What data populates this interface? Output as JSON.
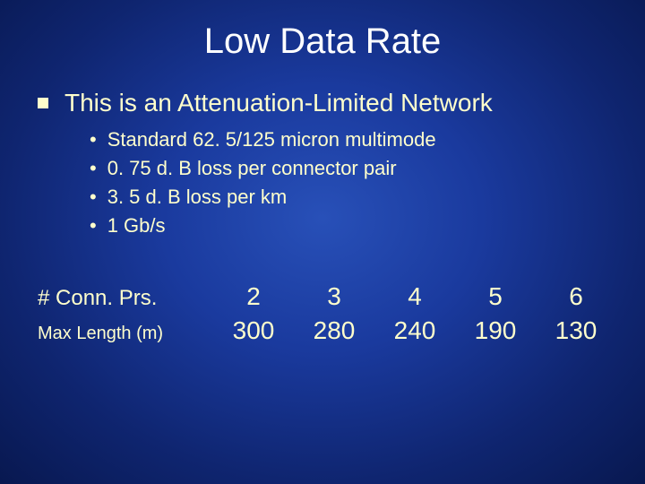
{
  "background": {
    "gradient_center": "#2850b8",
    "gradient_mid": "#1a3a9e",
    "gradient_outer": "#0f2570",
    "gradient_edge": "#081850"
  },
  "text_color": "#ffffcc",
  "title": {
    "text": "Low Data Rate",
    "color": "#ffffff",
    "fontsize": 40
  },
  "main_bullet": {
    "text": "This is an Attenuation-Limited Network",
    "fontsize": 28,
    "bullet_shape": "square"
  },
  "sub_bullets": {
    "fontsize": 22,
    "bullet_shape": "disc",
    "items": [
      "Standard 62. 5/125 micron multimode",
      "0. 75 d. B loss per connector pair",
      "3. 5 d. B loss per km",
      "1 Gb/s"
    ]
  },
  "table": {
    "rows": [
      {
        "label": "# Conn. Prs.",
        "label_fontsize": 24,
        "values": [
          "2",
          "3",
          "4",
          "5",
          "6"
        ]
      },
      {
        "label": "Max Length (m)",
        "label_fontsize": 20,
        "values": [
          "300",
          "280",
          "240",
          "190",
          "130"
        ]
      }
    ],
    "value_fontsize": 28,
    "column_count": 5
  }
}
